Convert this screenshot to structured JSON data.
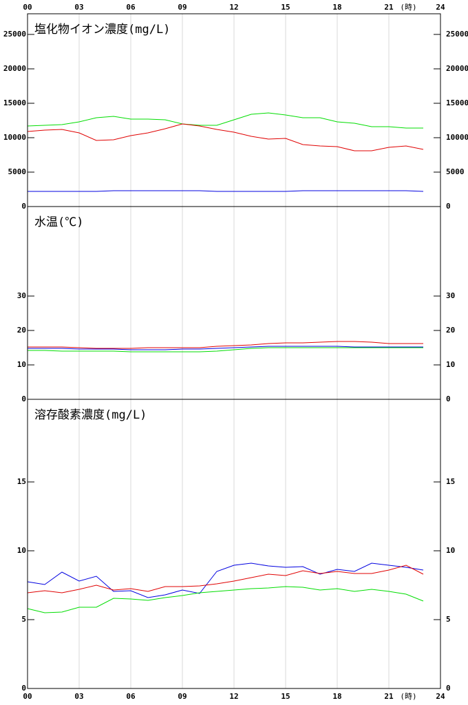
{
  "chart_data": [
    {
      "type": "line",
      "title": "塩化物イオン濃度(mg/L)",
      "xaxis_position": "top",
      "x_label": "(時)",
      "xlim": [
        0,
        24
      ],
      "xticks": [
        {
          "value": 0,
          "label": "00"
        },
        {
          "value": 3,
          "label": "03"
        },
        {
          "value": 6,
          "label": "06"
        },
        {
          "value": 9,
          "label": "09"
        },
        12,
        15,
        18,
        21,
        24
      ],
      "ylim": [
        0,
        28000
      ],
      "yticks": [
        0,
        5000,
        10000,
        15000,
        20000,
        25000
      ],
      "grid": true,
      "x": [
        0,
        1,
        2,
        3,
        4,
        5,
        6,
        7,
        8,
        9,
        10,
        11,
        12,
        13,
        14,
        15,
        16,
        17,
        18,
        19,
        20,
        21,
        22,
        23
      ],
      "series": [
        {
          "color": "#00dd00",
          "values": [
            11700,
            11800,
            11900,
            12300,
            12900,
            13100,
            12700,
            12700,
            12600,
            12000,
            11800,
            11800,
            12600,
            13400,
            13600,
            13300,
            12900,
            12900,
            12300,
            12100,
            11600,
            11600,
            11400,
            11400
          ]
        },
        {
          "color": "#e00000",
          "values": [
            10900,
            11100,
            11200,
            10700,
            9600,
            9700,
            10300,
            10700,
            11300,
            12000,
            11700,
            11200,
            10800,
            10200,
            9800,
            9900,
            9000,
            8800,
            8700,
            8100,
            8100,
            8600,
            8800,
            8300
          ]
        },
        {
          "color": "#0000e0",
          "values": [
            2200,
            2200,
            2200,
            2200,
            2200,
            2300,
            2300,
            2300,
            2300,
            2300,
            2300,
            2200,
            2200,
            2200,
            2200,
            2200,
            2300,
            2300,
            2300,
            2300,
            2300,
            2300,
            2300,
            2200
          ]
        }
      ]
    },
    {
      "type": "line",
      "title": "水温(℃)",
      "xaxis_position": "none",
      "xlim": [
        0,
        24
      ],
      "xticks": [
        0,
        3,
        6,
        9,
        12,
        15,
        18,
        21,
        24
      ],
      "ylim": [
        0,
        56
      ],
      "yticks": [
        0,
        10,
        20,
        30
      ],
      "grid": true,
      "x": [
        0,
        1,
        2,
        3,
        4,
        5,
        6,
        7,
        8,
        9,
        10,
        11,
        12,
        13,
        14,
        15,
        16,
        17,
        18,
        19,
        20,
        21,
        22,
        23
      ],
      "series": [
        {
          "color": "#e00000",
          "values": [
            15.2,
            15.2,
            15.2,
            15.0,
            14.8,
            14.8,
            14.8,
            15.0,
            15.0,
            15.0,
            15.0,
            15.4,
            15.6,
            15.8,
            16.2,
            16.4,
            16.4,
            16.6,
            16.8,
            16.8,
            16.6,
            16.2,
            16.2,
            16.2
          ]
        },
        {
          "color": "#0000e0",
          "values": [
            14.8,
            14.8,
            14.8,
            14.6,
            14.6,
            14.6,
            14.4,
            14.4,
            14.4,
            14.6,
            14.6,
            14.8,
            15.0,
            15.2,
            15.4,
            15.4,
            15.4,
            15.4,
            15.4,
            15.2,
            15.2,
            15.2,
            15.2,
            15.2
          ]
        },
        {
          "color": "#00dd00",
          "values": [
            14.2,
            14.2,
            14.0,
            14.0,
            14.0,
            14.0,
            13.8,
            13.8,
            13.8,
            13.8,
            13.8,
            14.0,
            14.4,
            14.8,
            15.0,
            15.0,
            15.0,
            15.0,
            15.0,
            15.0,
            15.0,
            15.0,
            15.0,
            15.0
          ]
        }
      ]
    },
    {
      "type": "line",
      "title": "溶存酸素濃度(mg/L)",
      "xaxis_position": "bottom",
      "x_label": "(時)",
      "xlim": [
        0,
        24
      ],
      "xticks": [
        {
          "value": 0,
          "label": "00"
        },
        {
          "value": 3,
          "label": "03"
        },
        {
          "value": 6,
          "label": "06"
        },
        {
          "value": 9,
          "label": "09"
        },
        12,
        15,
        18,
        21,
        24
      ],
      "ylim": [
        0,
        21
      ],
      "yticks": [
        0,
        5,
        10,
        15
      ],
      "grid": true,
      "x": [
        0,
        1,
        2,
        3,
        4,
        5,
        6,
        7,
        8,
        9,
        10,
        11,
        12,
        13,
        14,
        15,
        16,
        17,
        18,
        19,
        20,
        21,
        22,
        23
      ],
      "series": [
        {
          "color": "#0000e0",
          "values": [
            7.75,
            7.55,
            8.45,
            7.8,
            8.15,
            7.05,
            7.1,
            6.6,
            6.8,
            7.15,
            6.9,
            8.5,
            8.95,
            9.1,
            8.9,
            8.8,
            8.85,
            8.3,
            8.65,
            8.5,
            9.1,
            8.95,
            8.8,
            8.6
          ]
        },
        {
          "color": "#e00000",
          "values": [
            6.95,
            7.1,
            6.95,
            7.2,
            7.5,
            7.15,
            7.25,
            7.05,
            7.4,
            7.4,
            7.45,
            7.6,
            7.8,
            8.05,
            8.3,
            8.2,
            8.55,
            8.35,
            8.5,
            8.35,
            8.35,
            8.6,
            8.95,
            8.3
          ]
        },
        {
          "color": "#00dd00",
          "values": [
            5.8,
            5.5,
            5.55,
            5.9,
            5.9,
            6.55,
            6.5,
            6.4,
            6.6,
            6.75,
            6.95,
            7.05,
            7.15,
            7.25,
            7.3,
            7.4,
            7.35,
            7.15,
            7.25,
            7.05,
            7.2,
            7.05,
            6.85,
            6.35
          ]
        }
      ]
    }
  ]
}
